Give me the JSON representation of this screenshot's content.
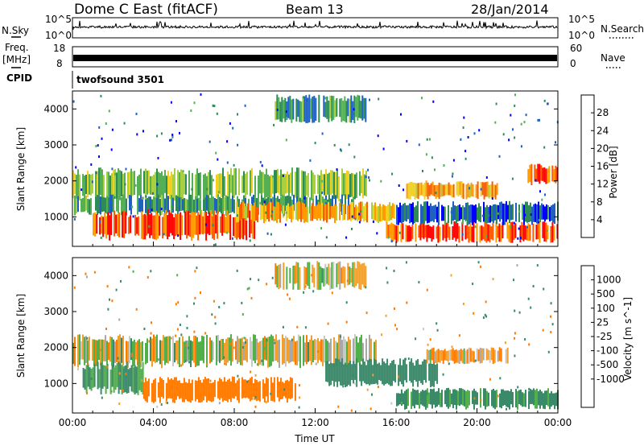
{
  "header": {
    "radar_title": "Dome C East (fitACF)",
    "beam_label": "Beam 13",
    "date_label": "28/Jan/2014"
  },
  "top_panels": {
    "nsky": {
      "label": "N.Sky",
      "tick_top": "10^5",
      "tick_bottom": "10^0"
    },
    "nsearch": {
      "label": "N.Search",
      "tick_top": "10^5",
      "tick_bottom": "10^0"
    },
    "freq": {
      "label_line1": "Freq.",
      "label_line2": "[MHz]",
      "tick_top": "18",
      "tick_bottom": "8"
    },
    "nave": {
      "label": "Nave",
      "tick_top": "60",
      "tick_bottom": "0"
    },
    "cpid": {
      "label": "CPID",
      "program": "twofsound 3501"
    }
  },
  "colors": {
    "power_scale": [
      "#0000ff",
      "#2060c0",
      "#2e8b57",
      "#55b055",
      "#a8d040",
      "#f2d020",
      "#ff9a00",
      "#ff5a00",
      "#ff0000"
    ],
    "velocity_scale": [
      "#2020c8",
      "#2e6aa8",
      "#3a8a6a",
      "#52b04a",
      "#a8a8a8",
      "#c8c8c8",
      "#f0a030",
      "#ff7a00",
      "#ff3a00",
      "#ff0000"
    ]
  },
  "chart_data": [
    {
      "type": "heatmap",
      "panel": "power",
      "ylabel": "Slant Range [km]",
      "xlim": [
        0,
        24
      ],
      "ylim": [
        180,
        4500
      ],
      "y_ticks": [
        1000,
        2000,
        3000,
        4000
      ],
      "colorbar": {
        "label": "Power [dB]",
        "ticks": [
          4,
          8,
          12,
          16,
          20,
          24,
          28
        ],
        "range": [
          0,
          32
        ]
      },
      "echo_regions": [
        {
          "t0": 0.0,
          "t1": 14.5,
          "r0": 1550,
          "r1": 2250,
          "value": 14
        },
        {
          "t0": 0.0,
          "t1": 14.0,
          "r0": 1100,
          "r1": 1550,
          "value": 10
        },
        {
          "t0": 1.0,
          "t1": 9.0,
          "r0": 450,
          "r1": 1100,
          "value": 27
        },
        {
          "t0": 8.0,
          "t1": 16.0,
          "r0": 900,
          "r1": 1350,
          "value": 22
        },
        {
          "t0": 15.5,
          "t1": 24.0,
          "r0": 350,
          "r1": 800,
          "value": 28
        },
        {
          "t0": 16.5,
          "t1": 21.0,
          "r0": 1550,
          "r1": 1950,
          "value": 22
        },
        {
          "t0": 16.0,
          "t1": 24.0,
          "r0": 850,
          "r1": 1350,
          "value": 6
        },
        {
          "t0": 10.0,
          "t1": 14.5,
          "r0": 3700,
          "r1": 4300,
          "value": 10
        },
        {
          "t0": 22.5,
          "t1": 24.0,
          "r0": 1950,
          "r1": 2400,
          "value": 26
        }
      ]
    },
    {
      "type": "heatmap",
      "panel": "velocity",
      "ylabel": "Slant Range [km]",
      "xlabel": "Time UT",
      "xlim": [
        0,
        24
      ],
      "ylim": [
        180,
        4500
      ],
      "x_ticks": [
        "00:00",
        "04:00",
        "08:00",
        "12:00",
        "16:00",
        "20:00",
        "00:00"
      ],
      "y_ticks": [
        1000,
        2000,
        3000,
        4000
      ],
      "colorbar": {
        "label": "Velocity [m s^-1]",
        "ticks": [
          "1000",
          "500",
          "100",
          "25",
          "-25",
          "-100",
          "-500",
          "-1000"
        ]
      },
      "echo_regions": [
        {
          "t0": 0.0,
          "t1": 15.0,
          "r0": 1550,
          "r1": 2250,
          "value": 0
        },
        {
          "t0": 0.5,
          "t1": 3.5,
          "r0": 800,
          "r1": 1500,
          "value": 150
        },
        {
          "t0": 3.5,
          "t1": 11.0,
          "r0": 550,
          "r1": 1100,
          "value": -300
        },
        {
          "t0": 12.5,
          "t1": 18.0,
          "r0": 1000,
          "r1": 1600,
          "value": 300
        },
        {
          "t0": 16.0,
          "t1": 24.0,
          "r0": 350,
          "r1": 800,
          "value": 150
        },
        {
          "t0": 17.5,
          "t1": 21.5,
          "r0": 1600,
          "r1": 1950,
          "value": -80
        },
        {
          "t0": 10.0,
          "t1": 14.5,
          "r0": 3700,
          "r1": 4300,
          "value": 0
        }
      ]
    }
  ]
}
